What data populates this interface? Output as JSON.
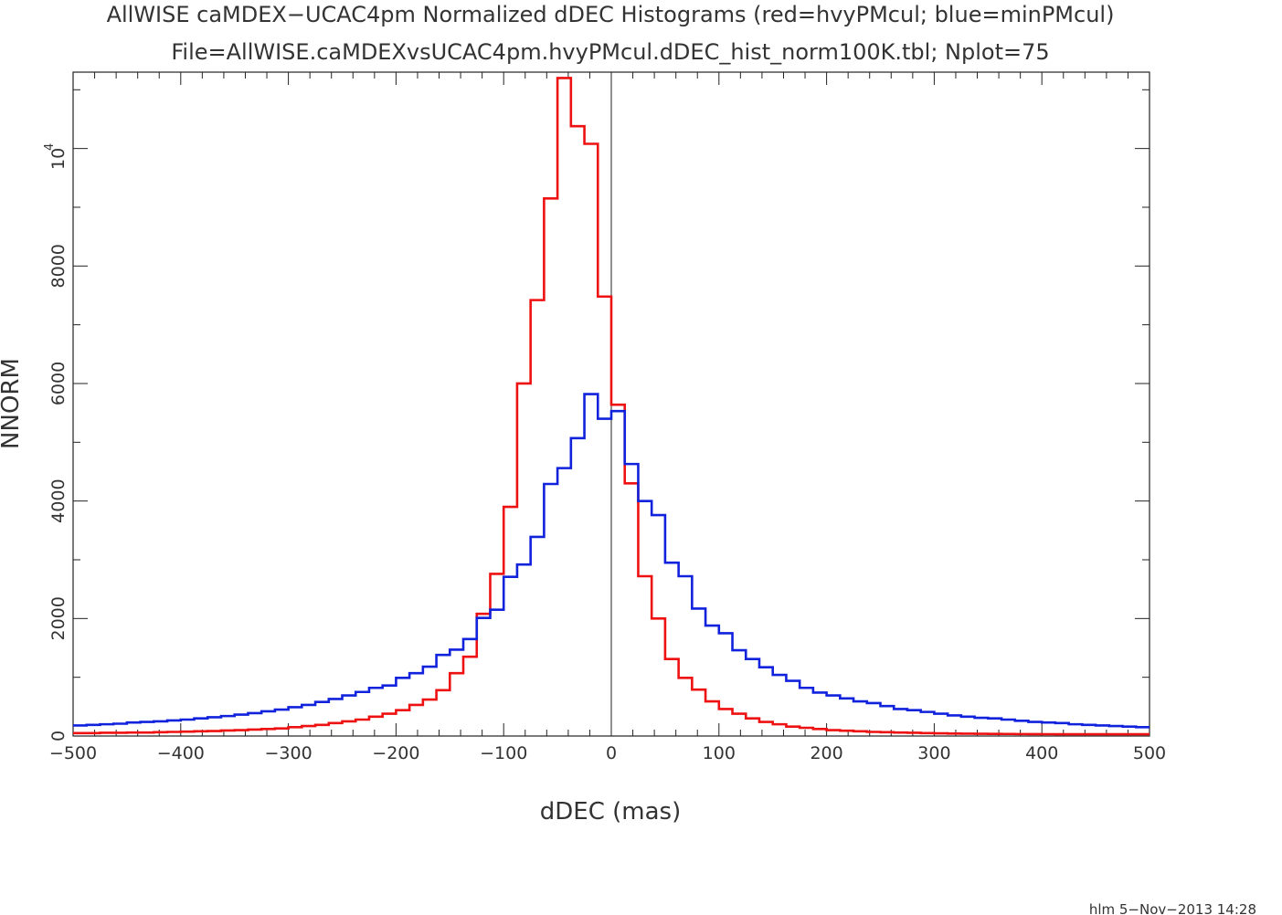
{
  "title": "AllWISE caMDEX−UCAC4pm Normalized dDEC Histograms (red=hvyPMcul; blue=minPMcul)",
  "subtitle": "File=AllWISE.caMDEXvsUCAC4pm.hvyPMcul.dDEC_hist_norm100K.tbl; Nplot=75",
  "footer": "hlm   5−Nov−2013 14:28",
  "colors": {
    "red": "#ee1111",
    "blue": "#1122dd",
    "axis": "#222222"
  },
  "chart_data": {
    "type": "line",
    "style": "step histogram",
    "xlabel": "dDEC (mas)",
    "ylabel": "NNORM",
    "y_multiplier_label": "10",
    "y_multiplier_exp": "4",
    "xlim": [
      -500,
      500
    ],
    "ylim": [
      0,
      11300
    ],
    "grid": false,
    "x_ticks": [
      -500,
      -400,
      -300,
      -200,
      -100,
      0,
      100,
      200,
      300,
      400,
      500
    ],
    "x_tick_labels": [
      "−500",
      "−400",
      "−300",
      "−200",
      "−100",
      "0",
      "100",
      "200",
      "300",
      "400",
      "500"
    ],
    "y_ticks": [
      0,
      2000,
      4000,
      6000,
      8000,
      10000
    ],
    "y_tick_labels": [
      "0",
      "2000",
      "4000",
      "6000",
      "8000",
      ""
    ],
    "y_minor_ticks": [
      1000,
      3000,
      5000,
      7000,
      9000,
      11000
    ],
    "bin_edges_start": -500,
    "bin_width": 12.5,
    "series": [
      {
        "name": "hvyPMcul",
        "color": "red",
        "values": [
          50,
          50,
          55,
          55,
          60,
          60,
          65,
          70,
          75,
          80,
          85,
          95,
          100,
          110,
          120,
          130,
          150,
          170,
          190,
          220,
          250,
          280,
          330,
          380,
          440,
          530,
          620,
          780,
          1070,
          1350,
          2080,
          2760,
          3900,
          6000,
          7420,
          9150,
          11200,
          10380,
          10080,
          7480,
          5640,
          4300,
          2720,
          2000,
          1310,
          990,
          790,
          590,
          460,
          380,
          300,
          240,
          200,
          160,
          140,
          120,
          100,
          90,
          80,
          70,
          65,
          60,
          55,
          50,
          45,
          42,
          40,
          38,
          36,
          35,
          33,
          32,
          31,
          30,
          30,
          30,
          30,
          30,
          30,
          30
        ]
      },
      {
        "name": "minPMcul",
        "color": "blue",
        "values": [
          180,
          190,
          200,
          210,
          230,
          240,
          250,
          265,
          280,
          300,
          320,
          340,
          365,
          390,
          420,
          450,
          490,
          530,
          580,
          630,
          690,
          750,
          820,
          860,
          990,
          1070,
          1180,
          1380,
          1470,
          1650,
          2010,
          2150,
          2710,
          2920,
          3390,
          4290,
          4560,
          5070,
          5820,
          5400,
          5530,
          4630,
          4000,
          3760,
          2950,
          2720,
          2170,
          1880,
          1750,
          1460,
          1310,
          1170,
          1040,
          940,
          820,
          740,
          690,
          640,
          590,
          560,
          510,
          460,
          440,
          410,
          380,
          350,
          330,
          310,
          300,
          280,
          260,
          240,
          230,
          220,
          200,
          190,
          180,
          170,
          160,
          150
        ]
      }
    ]
  }
}
